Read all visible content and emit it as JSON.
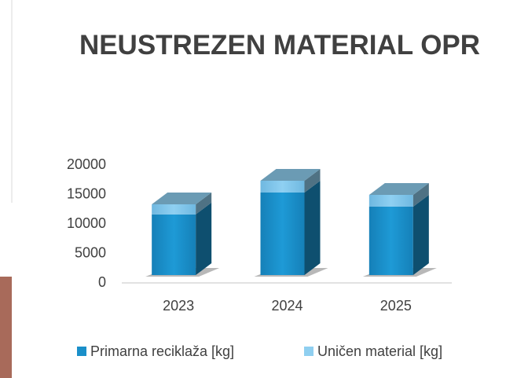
{
  "chart_data": {
    "type": "bar3d_stacked",
    "title": "NEUSTREZEN MATERIAL OPR",
    "categories": [
      "2023",
      "2024",
      "2025"
    ],
    "series": [
      {
        "name": "Primarna reciklaža [kg]",
        "color": "#1a8fc9",
        "values": [
          10300,
          14000,
          11600
        ]
      },
      {
        "name": "Uničen material [kg]",
        "color": "#8fcff0",
        "values": [
          1700,
          2000,
          2000
        ]
      }
    ],
    "ylim": [
      0,
      20000
    ],
    "yticks": [
      0,
      5000,
      10000,
      15000,
      20000
    ],
    "grid": false,
    "legend": "bottom"
  }
}
